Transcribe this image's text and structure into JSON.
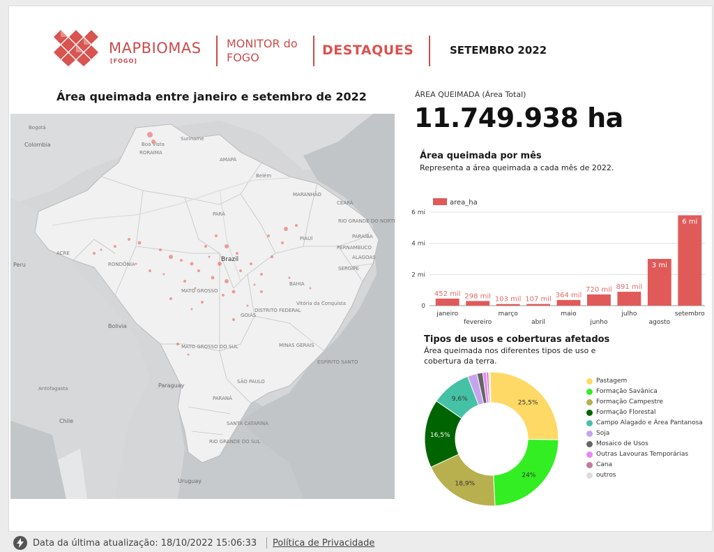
{
  "header": {
    "brand_map": "MAP",
    "brand_biomas": "BIOMAS",
    "brand_sub": "[FOGO]",
    "monitor_line1": "MONITOR do",
    "monitor_line2": "FOGO",
    "section": "DESTAQUES",
    "period": "SETEMBRO 2022"
  },
  "map": {
    "title": "Área queimada entre janeiro e setembro de 2022",
    "labels": {
      "colombia": "Colombia",
      "bogota": "Bogotá",
      "boa_vista": "Boa Vista",
      "suriname": "Suriname",
      "amapa": "AMAPÁ",
      "roraima": "RORAIMA",
      "para": "PARÁ",
      "maranhao": "MARANHÃO",
      "ceara": "CEARÁ",
      "rio_grande_do_norte": "RIO GRANDE DO NORTE",
      "paraiba": "PARAÍBA",
      "pernambuco": "PERNAMBUCO",
      "alagoas": "ALAGOAS",
      "sergipe": "SERGIPE",
      "piaui": "PIAUÍ",
      "acre": "ACRE",
      "rondonia": "RONDÔNIA",
      "peru": "Peru",
      "brazil": "Brazil",
      "bahia": "BAHIA",
      "mato_grosso": "MATO GROSSO",
      "goias": "GOIÁS",
      "distrito_federal": "DISTRITO FEDERAL",
      "bolivia": "Bolivia",
      "mato_grosso_do_sul": "MATO GROSSO DO SUL",
      "minas_gerais": "MINAS GERAIS",
      "espirito_santo": "ESPÍRITO SANTO",
      "sao_paulo": "SÃO PAULO",
      "parana": "PARANÁ",
      "santa_catarina": "SANTA CATARINA",
      "rio_grande_do_sul": "RIO GRANDE DO SUL",
      "paraguay": "Paraguay",
      "antofagasta": "Antofagasta",
      "chile": "Chile",
      "uruguay": "Uruguay",
      "belem": "Belém",
      "vitoria": "Vitória da Conquista"
    }
  },
  "kpi": {
    "label": "ÁREA QUEIMADA (Área Total)",
    "value": "11.749.938 ha"
  },
  "monthly": {
    "title": "Área queimada por mês",
    "subtitle": "Representa a área queimada a cada mês de 2022."
  },
  "chart_data": [
    {
      "type": "bar",
      "legend": [
        "area_ha"
      ],
      "categories": [
        "janeiro",
        "fevereiro",
        "março",
        "abril",
        "maio",
        "junho",
        "julho",
        "agosto",
        "setembro"
      ],
      "series": [
        {
          "name": "area_ha",
          "values": [
            452000,
            298000,
            103000,
            107000,
            364000,
            720000,
            891000,
            3000000,
            5800000
          ],
          "labels": [
            "452 mil",
            "298 mil",
            "103 mil",
            "107 mil",
            "364 mil",
            "720 mil",
            "891 mil",
            "3 mi",
            "6 mi"
          ]
        }
      ],
      "yticks": [
        "0",
        "2 mi",
        "4 mi",
        "6 mi"
      ],
      "ylim": [
        0,
        6000000
      ],
      "grid": true,
      "color": "#e15a5a"
    },
    {
      "type": "pie",
      "title": "Tipos de usos e coberturas afetados",
      "subtitle": "Área queimada nos diferentes tipos de uso e cobertura da terra.",
      "donut": true,
      "slices": [
        {
          "name": "Pastagem",
          "value": 25.5,
          "label": "25,5%",
          "color": "#ffd966"
        },
        {
          "name": "Formação Savânica",
          "value": 24.0,
          "label": "24%",
          "color": "#33ee22"
        },
        {
          "name": "Formação Campestre",
          "value": 18.9,
          "label": "18,9%",
          "color": "#b8af4f"
        },
        {
          "name": "Formação Florestal",
          "value": 16.5,
          "label": "16,5%",
          "color": "#006400"
        },
        {
          "name": "Campo Alagado e Área Pantanosa",
          "value": 9.6,
          "label": "9,6%",
          "color": "#45c2a5"
        },
        {
          "name": "Soja",
          "value": 2.3,
          "label": "",
          "color": "#c7a3ee"
        },
        {
          "name": "Mosaico de Usos",
          "value": 1.4,
          "label": "",
          "color": "#666666"
        },
        {
          "name": "Outras Lavouras Temporárias",
          "value": 0.9,
          "label": "",
          "color": "#e787f8"
        },
        {
          "name": "Cana",
          "value": 0.5,
          "label": "",
          "color": "#c27ba0"
        },
        {
          "name": "outros",
          "value": 0.4,
          "label": "",
          "color": "#dddddd"
        }
      ]
    }
  ],
  "footer": {
    "updated": "Data da última atualização: 18/10/2022 15:06:33",
    "privacy": "Política de Privacidade"
  }
}
